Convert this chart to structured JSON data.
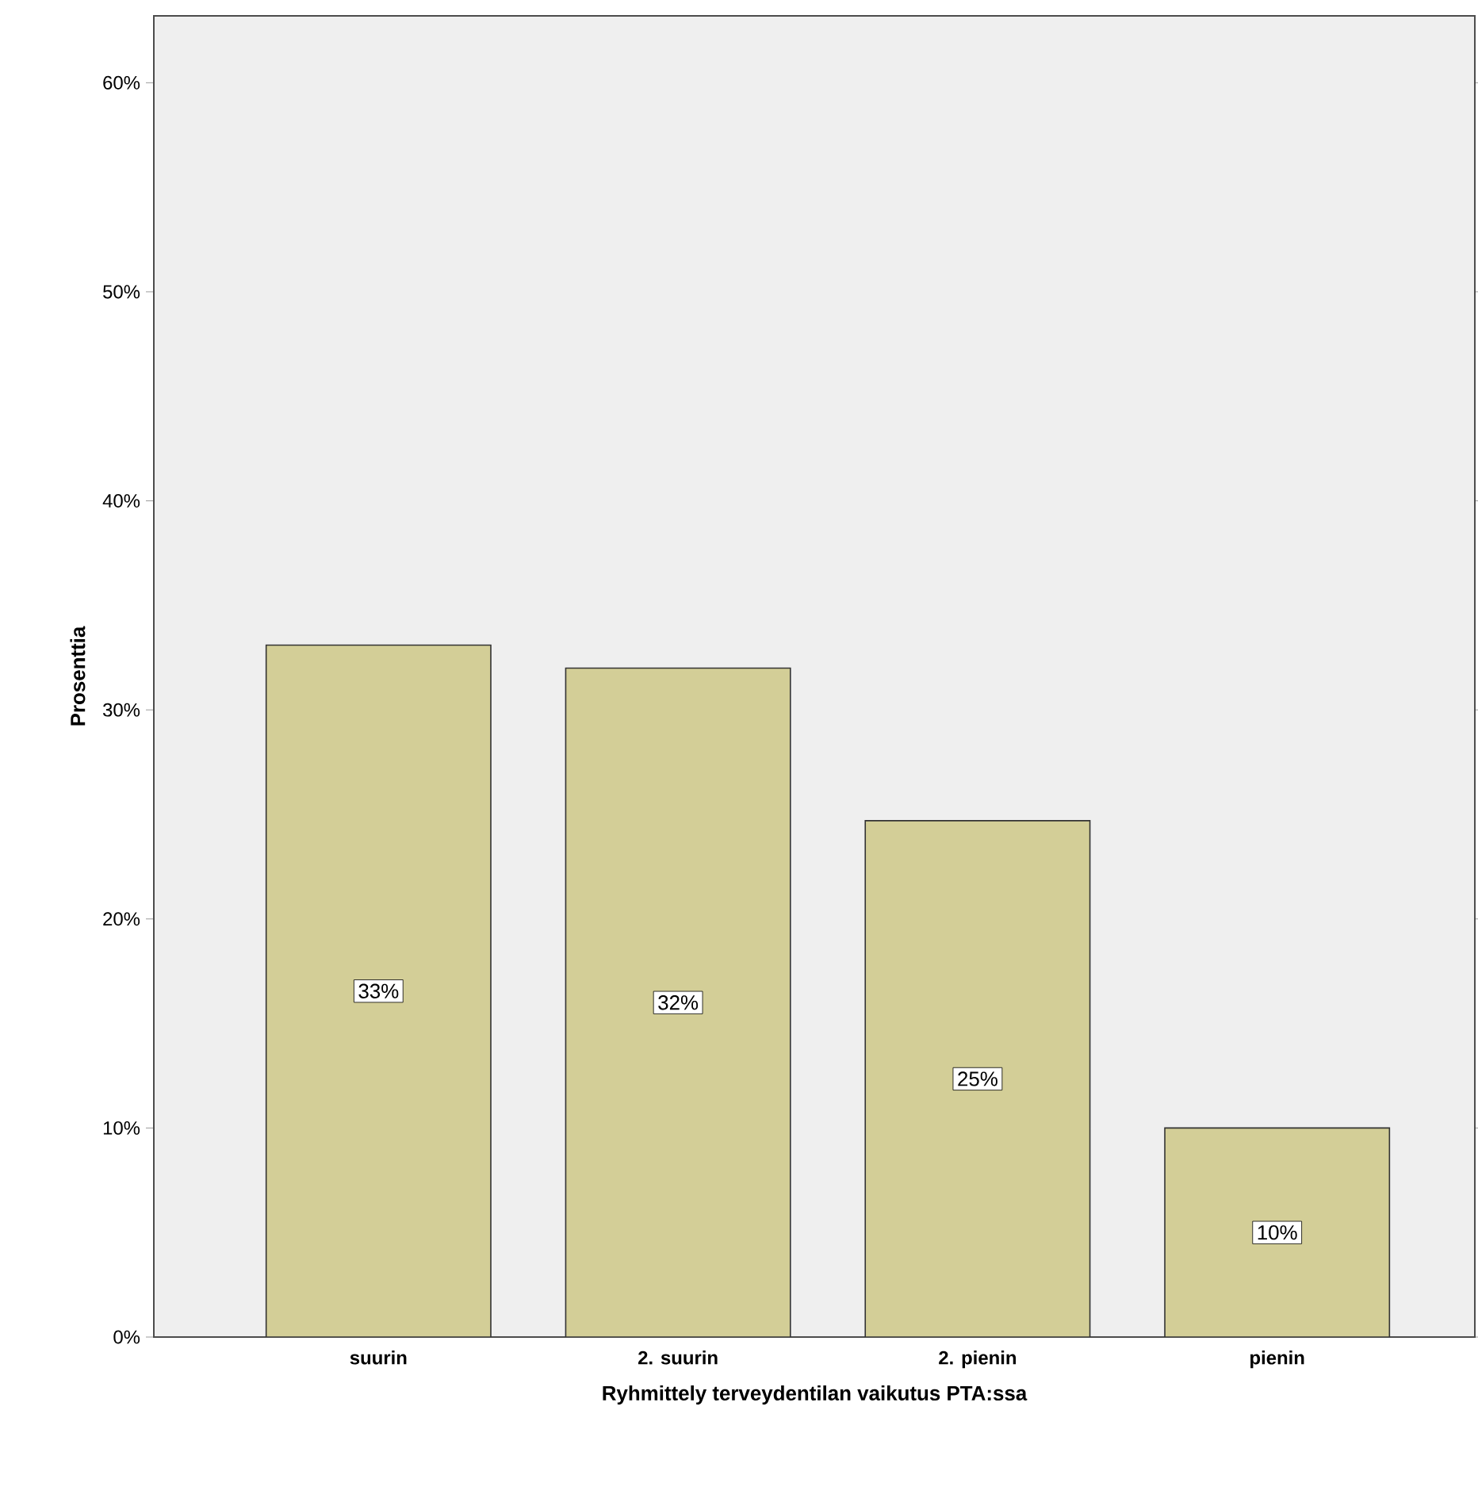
{
  "chart_data": {
    "type": "bar",
    "xlabel": "Ryhmittely terveydentilan vaikutus PTA:ssa",
    "ylabel": "Prosenttia",
    "categories": [
      "suurin",
      "2. suurin",
      "2. pienin",
      "pienin"
    ],
    "values": [
      33.1,
      32.0,
      24.7,
      10.0
    ],
    "value_labels": [
      "33%",
      "32%",
      "25%",
      "10%"
    ],
    "color": "#d3ce97",
    "ylim": [
      0,
      63.2
    ],
    "yticks": [
      {
        "value": 0,
        "label": "0%"
      },
      {
        "value": 10,
        "label": "10%"
      },
      {
        "value": 20,
        "label": "20%"
      },
      {
        "value": 30,
        "label": "30%"
      },
      {
        "value": 40,
        "label": "40%"
      },
      {
        "value": 50,
        "label": "50%"
      },
      {
        "value": 60,
        "label": "60%"
      }
    ]
  }
}
